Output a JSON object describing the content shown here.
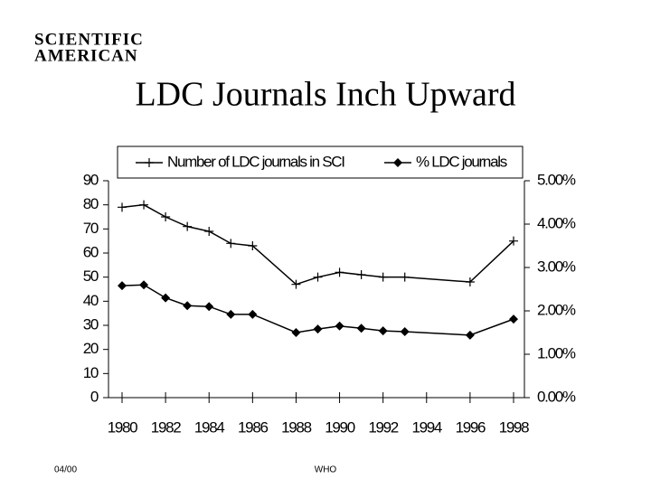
{
  "logo": [
    "SCIENTIFIC",
    "AMERICAN"
  ],
  "footer": {
    "date": "04/00",
    "source": "WHO"
  },
  "chart_data": {
    "type": "line",
    "title": "LDC Journals Inch Upward",
    "x": [
      1980,
      1981,
      1982,
      1983,
      1984,
      1985,
      1986,
      1988,
      1989,
      1990,
      1991,
      1992,
      1993,
      1996,
      1998
    ],
    "series": [
      {
        "name": "Number of LDC journals in SCI",
        "color": "#000000",
        "marker": "plus",
        "values": [
          79,
          80,
          75,
          71,
          69,
          64,
          63,
          47,
          50,
          52,
          51,
          50,
          50,
          48,
          65
        ]
      },
      {
        "name": "% LDC journals",
        "color": "#000000",
        "marker": "diamond",
        "axis": "y2",
        "values": [
          2.58,
          2.6,
          2.3,
          2.12,
          2.1,
          1.92,
          1.92,
          1.5,
          1.58,
          1.65,
          1.6,
          1.54,
          1.52,
          1.44,
          1.81
        ]
      }
    ],
    "xlim": [
      1980,
      1998
    ],
    "xticks": [
      1980,
      1982,
      1984,
      1986,
      1988,
      1990,
      1992,
      1994,
      1996,
      1998
    ],
    "ylim": [
      0,
      90
    ],
    "yticks": [
      0,
      10,
      20,
      30,
      40,
      50,
      60,
      70,
      80,
      90
    ],
    "y2lim": [
      0,
      5
    ],
    "y2ticks": [
      {
        "value": 0,
        "label": "0.00%"
      },
      {
        "value": 1,
        "label": "1.00%"
      },
      {
        "value": 2,
        "label": "2.00%"
      },
      {
        "value": 3,
        "label": "3.00%"
      },
      {
        "value": 4,
        "label": "4.00%"
      },
      {
        "value": 5,
        "label": "5.00%"
      }
    ],
    "legend": "top"
  }
}
